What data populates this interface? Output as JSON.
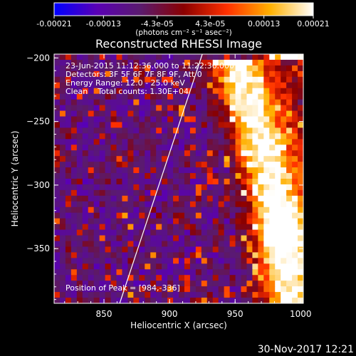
{
  "chart_data": {
    "type": "heatmap",
    "title": "Reconstructed RHESSI Image",
    "xlabel": "Heliocentric X (arcsec)",
    "ylabel": "Heliocentric Y (arcsec)",
    "xlim": [
      812,
      1002
    ],
    "ylim": [
      -393,
      -197
    ],
    "xticks": [
      850,
      900,
      950,
      1000
    ],
    "yticks": [
      -200,
      -250,
      -300,
      -350
    ],
    "colorbar": {
      "range": [
        -0.00021,
        0.00021
      ],
      "tick_values": [
        -0.00021,
        -0.00013,
        -4.3e-05,
        4.3e-05,
        0.00013,
        0.00021
      ],
      "tick_labels": [
        "-0.00021",
        "-0.00013",
        "-4.3e-05",
        "4.3e-05",
        "0.00013",
        "0.00021"
      ],
      "unit_text": "(photons cm⁻² s⁻¹ asec⁻²)",
      "colors": [
        "#0000ff",
        "#5a00b4",
        "#5a1b6e",
        "#8a0000",
        "#ff3000",
        "#ffb000",
        "#ffffff"
      ]
    },
    "annotations": [
      "23-Jun-2015 11:12:36.000 to 11:22:36.000",
      "Detectors: 3F 5F 6F 7F 8F 9F, Att 0",
      "Energy Range: 12.0 - 25.0 keV",
      "Clean    Total counts: 1.30E+04"
    ],
    "peak_text": "Position of Peak = [984,-336]",
    "peak_position": [
      984,
      -336
    ],
    "limb_line": [
      [
        862,
        -393
      ],
      [
        925,
        -197
      ]
    ],
    "emission_ridge": [
      [
        947,
        -200
      ],
      [
        957,
        -230
      ],
      [
        967,
        -262
      ],
      [
        975,
        -295
      ],
      [
        984,
        -336
      ],
      [
        987,
        -370
      ],
      [
        990,
        -393
      ]
    ]
  },
  "footer": {
    "timestamp": "30-Nov-2017 12:21"
  }
}
